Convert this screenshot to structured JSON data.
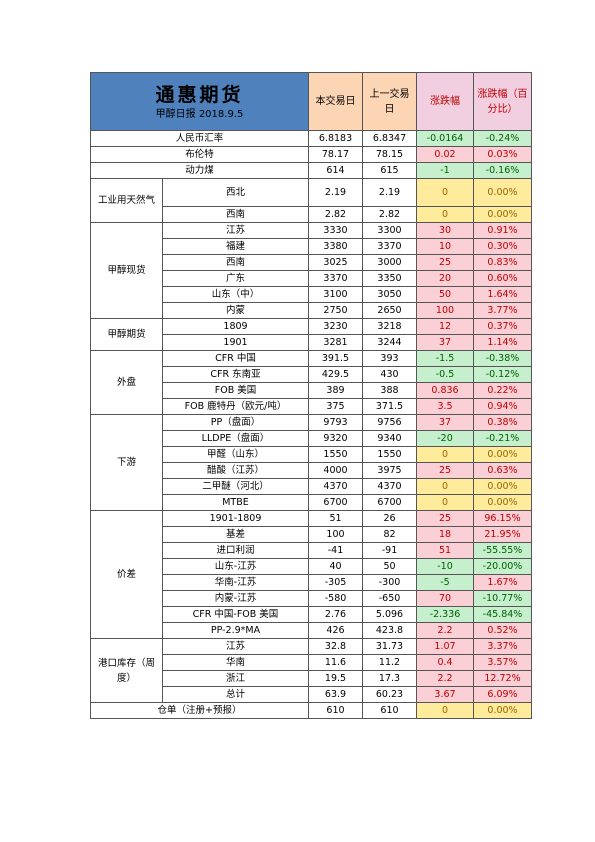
{
  "title": "通惠期货",
  "subtitle": "甲醇日报 2018.9.5",
  "headers": {
    "current": "本交易日",
    "previous": "上一交易日",
    "change": "涨跌幅",
    "percent": "涨跌幅（百分比）"
  },
  "groups": {
    "operating": "工业用天然气",
    "spot": "甲醇现货",
    "futures": "甲醇期货",
    "external": "外盘",
    "downstream": "下游",
    "spread": "价差",
    "inventory": "港口库存（周度）"
  },
  "rows": [
    {
      "label": "人民币汇率",
      "cur": "6.8183",
      "prev": "6.8347",
      "chg": "-0.0164",
      "pct": "-0.24%",
      "dir": "down"
    },
    {
      "label": "布伦特",
      "cur": "78.17",
      "prev": "78.15",
      "chg": "0.02",
      "pct": "0.03%",
      "dir": "up"
    },
    {
      "label": "动力煤",
      "cur": "614",
      "prev": "615",
      "chg": "-1",
      "pct": "-0.16%",
      "dir": "down"
    },
    {
      "label": "西北",
      "cur": "2.19",
      "prev": "2.19",
      "chg": "0",
      "pct": "0.00%",
      "dir": "flat"
    },
    {
      "label": "西南",
      "cur": "2.82",
      "prev": "2.82",
      "chg": "0",
      "pct": "0.00%",
      "dir": "flat"
    },
    {
      "label": "江苏",
      "cur": "3330",
      "prev": "3300",
      "chg": "30",
      "pct": "0.91%",
      "dir": "up"
    },
    {
      "label": "福建",
      "cur": "3380",
      "prev": "3370",
      "chg": "10",
      "pct": "0.30%",
      "dir": "up"
    },
    {
      "label": "西南",
      "cur": "3025",
      "prev": "3000",
      "chg": "25",
      "pct": "0.83%",
      "dir": "up"
    },
    {
      "label": "广东",
      "cur": "3370",
      "prev": "3350",
      "chg": "20",
      "pct": "0.60%",
      "dir": "up"
    },
    {
      "label": "山东（中）",
      "cur": "3100",
      "prev": "3050",
      "chg": "50",
      "pct": "1.64%",
      "dir": "up"
    },
    {
      "label": "内蒙",
      "cur": "2750",
      "prev": "2650",
      "chg": "100",
      "pct": "3.77%",
      "dir": "up"
    },
    {
      "label": "1809",
      "cur": "3230",
      "prev": "3218",
      "chg": "12",
      "pct": "0.37%",
      "dir": "up"
    },
    {
      "label": "1901",
      "cur": "3281",
      "prev": "3244",
      "chg": "37",
      "pct": "1.14%",
      "dir": "up"
    },
    {
      "label": "CFR 中国",
      "cur": "391.5",
      "prev": "393",
      "chg": "-1.5",
      "pct": "-0.38%",
      "dir": "down"
    },
    {
      "label": "CFR 东南亚",
      "cur": "429.5",
      "prev": "430",
      "chg": "-0.5",
      "pct": "-0.12%",
      "dir": "down"
    },
    {
      "label": "FOB 美国",
      "cur": "389",
      "prev": "388",
      "chg": "0.836",
      "pct": "0.22%",
      "dir": "up"
    },
    {
      "label": "FOB 鹿特丹（欧元/吨）",
      "cur": "375",
      "prev": "371.5",
      "chg": "3.5",
      "pct": "0.94%",
      "dir": "up"
    },
    {
      "label": "PP（盘面）",
      "cur": "9793",
      "prev": "9756",
      "chg": "37",
      "pct": "0.38%",
      "dir": "up"
    },
    {
      "label": "LLDPE（盘面）",
      "cur": "9320",
      "prev": "9340",
      "chg": "-20",
      "pct": "-0.21%",
      "dir": "down"
    },
    {
      "label": "甲醛（山东）",
      "cur": "1550",
      "prev": "1550",
      "chg": "0",
      "pct": "0.00%",
      "dir": "flat"
    },
    {
      "label": "醋酸（江苏）",
      "cur": "4000",
      "prev": "3975",
      "chg": "25",
      "pct": "0.63%",
      "dir": "up"
    },
    {
      "label": "二甲醚（河北）",
      "cur": "4370",
      "prev": "4370",
      "chg": "0",
      "pct": "0.00%",
      "dir": "flat"
    },
    {
      "label": "MTBE",
      "cur": "6700",
      "prev": "6700",
      "chg": "0",
      "pct": "0.00%",
      "dir": "flat"
    },
    {
      "label": "1901-1809",
      "cur": "51",
      "prev": "26",
      "chg": "25",
      "pct": "96.15%",
      "dir": "up"
    },
    {
      "label": "基差",
      "cur": "100",
      "prev": "82",
      "chg": "18",
      "pct": "21.95%",
      "dir": "up"
    },
    {
      "label": "进口利润",
      "cur": "-41",
      "prev": "-91",
      "chg": "51",
      "pct": "-55.55%",
      "dir": "mixed"
    },
    {
      "label": "山东-江苏",
      "cur": "40",
      "prev": "50",
      "chg": "-10",
      "pct": "-20.00%",
      "dir": "down"
    },
    {
      "label": "华南-江苏",
      "cur": "-305",
      "prev": "-300",
      "chg": "-5",
      "pct": "1.67%",
      "dir": "mixed2"
    },
    {
      "label": "内蒙-江苏",
      "cur": "-580",
      "prev": "-650",
      "chg": "70",
      "pct": "-10.77%",
      "dir": "mixed"
    },
    {
      "label": "CFR 中国-FOB 美国",
      "cur": "2.76",
      "prev": "5.096",
      "chg": "-2.336",
      "pct": "-45.84%",
      "dir": "down"
    },
    {
      "label": "PP-2.9*MA",
      "cur": "426",
      "prev": "423.8",
      "chg": "2.2",
      "pct": "0.52%",
      "dir": "up"
    },
    {
      "label": "江苏",
      "cur": "32.8",
      "prev": "31.73",
      "chg": "1.07",
      "pct": "3.37%",
      "dir": "up"
    },
    {
      "label": "华南",
      "cur": "11.6",
      "prev": "11.2",
      "chg": "0.4",
      "pct": "3.57%",
      "dir": "up"
    },
    {
      "label": "浙江",
      "cur": "19.5",
      "prev": "17.3",
      "chg": "2.2",
      "pct": "12.72%",
      "dir": "up"
    },
    {
      "label": "总计",
      "cur": "63.9",
      "prev": "60.23",
      "chg": "3.67",
      "pct": "6.09%",
      "dir": "up"
    },
    {
      "label": "仓单（注册+预报）",
      "cur": "610",
      "prev": "610",
      "chg": "0",
      "pct": "0.00%",
      "dir": "flat"
    }
  ],
  "colors": {
    "title_bg": "#4f81bd",
    "header_bg": "#fcd5b4",
    "change_header_bg": "#f2cfe0",
    "up_bg": "#fbcfd6",
    "down_bg": "#c6efce",
    "flat_bg": "#ffeb9c"
  }
}
